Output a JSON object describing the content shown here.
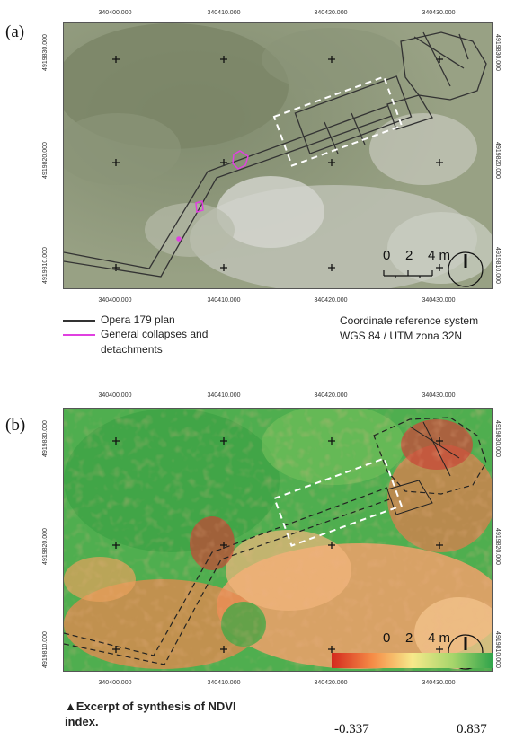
{
  "panels": {
    "a": {
      "label": "(a)"
    },
    "b": {
      "label": "(b)"
    }
  },
  "easting_ticks": [
    "340400.000",
    "340410.000",
    "340420.000",
    "340430.000"
  ],
  "northing_ticks": [
    "4919830.000",
    "4919820.000",
    "4919810.000"
  ],
  "scale_bar": {
    "labels": [
      "0",
      "2",
      "4 m"
    ]
  },
  "legend": {
    "plan_label": "Opera 179 plan",
    "collapse_label": "General collapses and",
    "collapse_label_2": "detachments",
    "plan_color": "#333333",
    "collapse_color": "#e040e0"
  },
  "crs": {
    "line1": "Coordinate reference system",
    "line2": "WGS 84 / UTM zona 32N"
  },
  "caption": {
    "line1": "▲Excerpt of synthesis of NDVI",
    "line2": "index."
  },
  "colorbar": {
    "min_label": "-0.337",
    "max_label": "0.837",
    "colors": [
      "#d42a1e",
      "#f58b46",
      "#f7e98b",
      "#a6d56b",
      "#2ea34a"
    ]
  }
}
